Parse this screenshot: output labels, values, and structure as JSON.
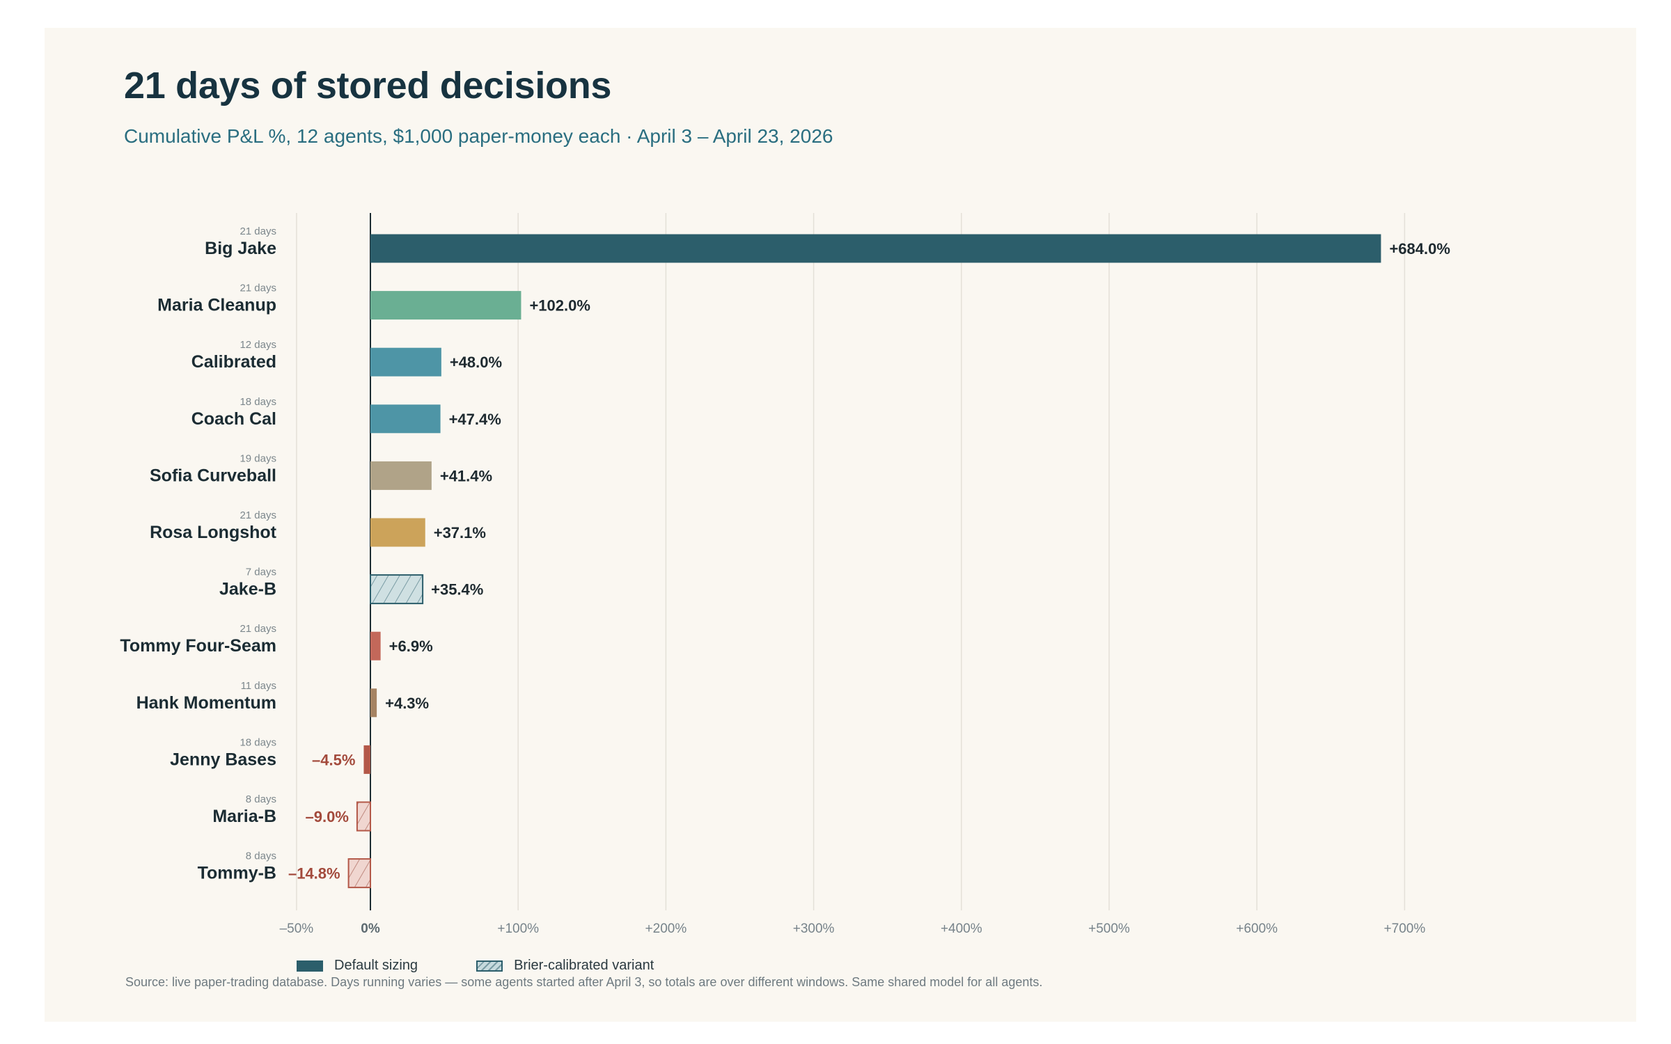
{
  "header": {
    "title": "21 days of stored decisions",
    "subtitle": "Cumulative P&L %, 12 agents, $1,000 paper-money each · April 3 – April 23, 2026"
  },
  "footnote": "Source: live paper-trading database. Days running varies — some agents started after April 3, so totals are over different windows. Same shared model for all agents.",
  "legend": {
    "default_label": "Default sizing",
    "variant_label": "Brier-calibrated variant"
  },
  "colors": {
    "default": "#2c5e6b",
    "positive_label": "#1e2a30",
    "negative_label": "#a34a3c"
  },
  "chart_data": {
    "type": "bar",
    "orientation": "horizontal",
    "title": "21 days of stored decisions",
    "subtitle": "Cumulative P&L %, 12 agents, $1,000 paper-money each · April 3 – April 23, 2026",
    "xlim": [
      -50,
      700
    ],
    "xticks": [
      {
        "value": -50,
        "label": "–50%"
      },
      {
        "value": 0,
        "label": "0%"
      },
      {
        "value": 100,
        "label": "+100%"
      },
      {
        "value": 200,
        "label": "+200%"
      },
      {
        "value": 300,
        "label": "+300%"
      },
      {
        "value": 400,
        "label": "+400%"
      },
      {
        "value": 500,
        "label": "+500%"
      },
      {
        "value": 600,
        "label": "+600%"
      },
      {
        "value": 700,
        "label": "+700%"
      }
    ],
    "grid": true,
    "legend_position": "bottom-left",
    "bars": [
      {
        "name": "Big Jake",
        "days": "21 days",
        "value": 684.0,
        "label": "+684.0%",
        "color": "#2c5e6b",
        "variant": false
      },
      {
        "name": "Maria Cleanup",
        "days": "21 days",
        "value": 102.0,
        "label": "+102.0%",
        "color": "#6aaf93",
        "variant": false
      },
      {
        "name": "Calibrated",
        "days": "12 days",
        "value": 48.0,
        "label": "+48.0%",
        "color": "#4e95a6",
        "variant": false
      },
      {
        "name": "Coach Cal",
        "days": "18 days",
        "value": 47.4,
        "label": "+47.4%",
        "color": "#4e95a6",
        "variant": false
      },
      {
        "name": "Sofia Curveball",
        "days": "19 days",
        "value": 41.4,
        "label": "+41.4%",
        "color": "#b0a388",
        "variant": false
      },
      {
        "name": "Rosa Longshot",
        "days": "21 days",
        "value": 37.1,
        "label": "+37.1%",
        "color": "#cca35a",
        "variant": false
      },
      {
        "name": "Jake-B",
        "days": "7 days",
        "value": 35.4,
        "label": "+35.4%",
        "color": "#2c5e6b",
        "variant": true
      },
      {
        "name": "Tommy Four-Seam",
        "days": "21 days",
        "value": 6.9,
        "label": "+6.9%",
        "color": "#c3685a",
        "variant": false
      },
      {
        "name": "Hank Momentum",
        "days": "11 days",
        "value": 4.3,
        "label": "+4.3%",
        "color": "#a68362",
        "variant": false
      },
      {
        "name": "Jenny Bases",
        "days": "18 days",
        "value": -4.5,
        "label": "–4.5%",
        "color": "#b35848",
        "variant": false
      },
      {
        "name": "Maria-B",
        "days": "8 days",
        "value": -9.0,
        "label": "–9.0%",
        "color": "#b35848",
        "variant": true
      },
      {
        "name": "Tommy-B",
        "days": "8 days",
        "value": -14.8,
        "label": "–14.8%",
        "color": "#b35848",
        "variant": true
      }
    ]
  }
}
